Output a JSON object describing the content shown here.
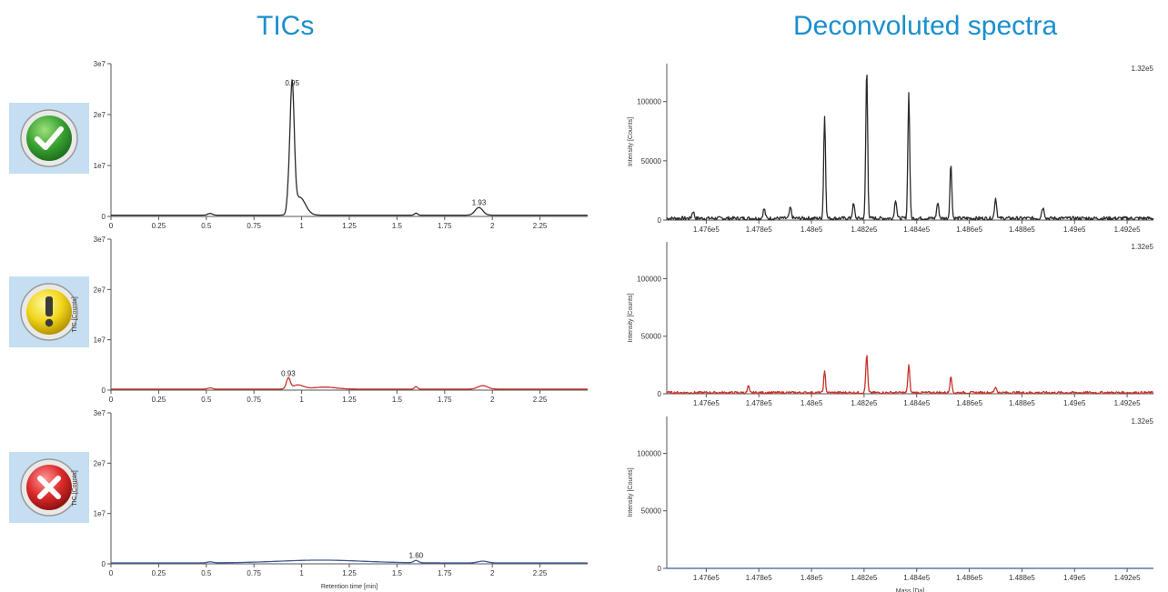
{
  "headings": {
    "tics": "TICs",
    "spectra": "Deconvoluted spectra"
  },
  "colors": {
    "heading": "#1a8fcd",
    "good": "#2b2b2b",
    "warning": "#c8332b",
    "bad": "#3f5a9a"
  },
  "status_icons": [
    "check-icon",
    "exclamation-icon",
    "cross-icon"
  ],
  "chart_data": [
    {
      "type": "line",
      "xlabel": "",
      "ylabel": "",
      "xlim": [
        0,
        2.5
      ],
      "ylim": [
        0,
        30000000
      ],
      "x_ticks": [
        0,
        0.25,
        0.5,
        0.75,
        1,
        1.25,
        1.5,
        1.75,
        2,
        2.25
      ],
      "x_tick_labels": [
        "0",
        "0.25",
        "0.5",
        "0.75",
        "1",
        "1.25",
        "1.5",
        "1.75",
        "2",
        "2.25"
      ],
      "y_ticks": [
        0,
        10000000,
        20000000,
        30000000
      ],
      "y_tick_labels": [
        "0",
        "1e7",
        "2e7",
        "3e7"
      ],
      "series": [
        {
          "color": "#2b2b2b",
          "baseline": 250000,
          "peaks": [
            {
              "x": 0.52,
              "y": 350000,
              "w": 0.012
            },
            {
              "x": 0.93,
              "y": 2500000,
              "w": 0.008
            },
            {
              "x": 0.95,
              "y": 25000000,
              "w": 0.011
            },
            {
              "x": 0.99,
              "y": 3500000,
              "w": 0.03
            },
            {
              "x": 1.6,
              "y": 400000,
              "w": 0.008
            },
            {
              "x": 1.93,
              "y": 1500000,
              "w": 0.02
            }
          ]
        }
      ],
      "annotations": [
        {
          "x": 0.95,
          "y": 25000000,
          "text": "0.95"
        },
        {
          "x": 1.93,
          "y": 1500000,
          "text": "1.93"
        }
      ]
    },
    {
      "type": "line",
      "xlabel": "",
      "ylabel": "TIC [Counts]",
      "xlim": [
        0,
        2.5
      ],
      "ylim": [
        0,
        30000000
      ],
      "x_ticks": [
        0,
        0.25,
        0.5,
        0.75,
        1,
        1.25,
        1.5,
        1.75,
        2,
        2.25
      ],
      "x_tick_labels": [
        "0",
        "0.25",
        "0.5",
        "0.75",
        "1",
        "1.25",
        "1.5",
        "1.75",
        "2",
        "2.25"
      ],
      "y_ticks": [
        0,
        10000000,
        20000000,
        30000000
      ],
      "y_tick_labels": [
        "0",
        "1e7",
        "2e7",
        "3e7"
      ],
      "series": [
        {
          "color": "#c8332b",
          "baseline": 200000,
          "peaks": [
            {
              "x": 0.52,
              "y": 250000,
              "w": 0.012
            },
            {
              "x": 0.93,
              "y": 2100000,
              "w": 0.01
            },
            {
              "x": 0.98,
              "y": 800000,
              "w": 0.03
            },
            {
              "x": 1.12,
              "y": 400000,
              "w": 0.06
            },
            {
              "x": 1.6,
              "y": 500000,
              "w": 0.008
            },
            {
              "x": 1.95,
              "y": 700000,
              "w": 0.025
            }
          ]
        }
      ],
      "annotations": [
        {
          "x": 0.93,
          "y": 2100000,
          "text": "0.93"
        }
      ]
    },
    {
      "type": "line",
      "xlabel": "Retention time [min]",
      "ylabel": "TIC [Counts]",
      "xlim": [
        0,
        2.5
      ],
      "ylim": [
        0,
        30000000
      ],
      "x_ticks": [
        0,
        0.25,
        0.5,
        0.75,
        1,
        1.25,
        1.5,
        1.75,
        2,
        2.25
      ],
      "x_tick_labels": [
        "0",
        "0.25",
        "0.5",
        "0.75",
        "1",
        "1.25",
        "1.5",
        "1.75",
        "2",
        "2.25"
      ],
      "y_ticks": [
        0,
        10000000,
        20000000,
        30000000
      ],
      "y_tick_labels": [
        "0",
        "1e7",
        "2e7",
        "3e7"
      ],
      "series": [
        {
          "color": "#3f5a9a",
          "baseline": 180000,
          "peaks": [
            {
              "x": 0.52,
              "y": 200000,
              "w": 0.015
            },
            {
              "x": 1.1,
              "y": 550000,
              "w": 0.22
            },
            {
              "x": 1.6,
              "y": 450000,
              "w": 0.012
            },
            {
              "x": 1.95,
              "y": 350000,
              "w": 0.025
            }
          ]
        }
      ],
      "annotations": [
        {
          "x": 1.6,
          "y": 450000,
          "text": "1.60"
        }
      ]
    },
    {
      "type": "line",
      "xlabel": "",
      "ylabel": "Intensity [Counts]",
      "xlim": [
        147450,
        149300
      ],
      "ylim": [
        0,
        132000
      ],
      "x_ticks": [
        147600,
        147800,
        148000,
        148200,
        148400,
        148600,
        148800,
        149000,
        149200
      ],
      "x_tick_labels": [
        "1.476e5",
        "1.478e5",
        "1.48e5",
        "1.482e5",
        "1.484e5",
        "1.486e5",
        "1.488e5",
        "1.49e5",
        "1.492e5"
      ],
      "y_ticks": [
        0,
        50000,
        100000
      ],
      "y_tick_labels": [
        "0",
        "50000",
        "100000"
      ],
      "max_label": "1.32e5",
      "series": [
        {
          "color": "#2b2b2b",
          "noise": 3000,
          "peaks": [
            {
              "x": 147550,
              "y": 6000,
              "w": 4
            },
            {
              "x": 147820,
              "y": 8000,
              "w": 4
            },
            {
              "x": 147920,
              "y": 9000,
              "w": 4
            },
            {
              "x": 148050,
              "y": 86000,
              "w": 3.5
            },
            {
              "x": 148160,
              "y": 12000,
              "w": 4
            },
            {
              "x": 148210,
              "y": 127000,
              "w": 3.5
            },
            {
              "x": 148320,
              "y": 16000,
              "w": 4
            },
            {
              "x": 148370,
              "y": 106000,
              "w": 3.5
            },
            {
              "x": 148480,
              "y": 13000,
              "w": 4
            },
            {
              "x": 148530,
              "y": 46000,
              "w": 3.5
            },
            {
              "x": 148700,
              "y": 17000,
              "w": 4
            },
            {
              "x": 148880,
              "y": 9000,
              "w": 5
            }
          ]
        }
      ]
    },
    {
      "type": "line",
      "xlabel": "",
      "ylabel": "Intensity [Counts]",
      "xlim": [
        147450,
        149300
      ],
      "ylim": [
        0,
        132000
      ],
      "x_ticks": [
        147600,
        147800,
        148000,
        148200,
        148400,
        148600,
        148800,
        149000,
        149200
      ],
      "x_tick_labels": [
        "1.476e5",
        "1.478e5",
        "1.48e5",
        "1.482e5",
        "1.484e5",
        "1.486e5",
        "1.488e5",
        "1.49e5",
        "1.492e5"
      ],
      "y_ticks": [
        0,
        50000,
        100000
      ],
      "y_tick_labels": [
        "0",
        "50000",
        "100000"
      ],
      "max_label": "1.32e5",
      "series": [
        {
          "color": "#c8332b",
          "noise": 2000,
          "peaks": [
            {
              "x": 147760,
              "y": 6000,
              "w": 3
            },
            {
              "x": 148050,
              "y": 18000,
              "w": 3.5
            },
            {
              "x": 148210,
              "y": 33000,
              "w": 3.5
            },
            {
              "x": 148370,
              "y": 24000,
              "w": 3.5
            },
            {
              "x": 148530,
              "y": 15000,
              "w": 3.5
            },
            {
              "x": 148700,
              "y": 5000,
              "w": 4
            }
          ]
        }
      ]
    },
    {
      "type": "line",
      "xlabel": "Mass [Da]",
      "ylabel": "Intensity [Counts]",
      "xlim": [
        147450,
        149300
      ],
      "ylim": [
        0,
        132000
      ],
      "x_ticks": [
        147600,
        147800,
        148000,
        148200,
        148400,
        148600,
        148800,
        149000,
        149200
      ],
      "x_tick_labels": [
        "1.476e5",
        "1.478e5",
        "1.48e5",
        "1.482e5",
        "1.484e5",
        "1.486e5",
        "1.488e5",
        "1.49e5",
        "1.492e5"
      ],
      "y_ticks": [
        0,
        50000,
        100000
      ],
      "y_tick_labels": [
        "0",
        "50000",
        "100000"
      ],
      "max_label": "1.32e5",
      "series": [
        {
          "color": "#3f5a9a",
          "noise": 0,
          "peaks": []
        }
      ]
    }
  ]
}
